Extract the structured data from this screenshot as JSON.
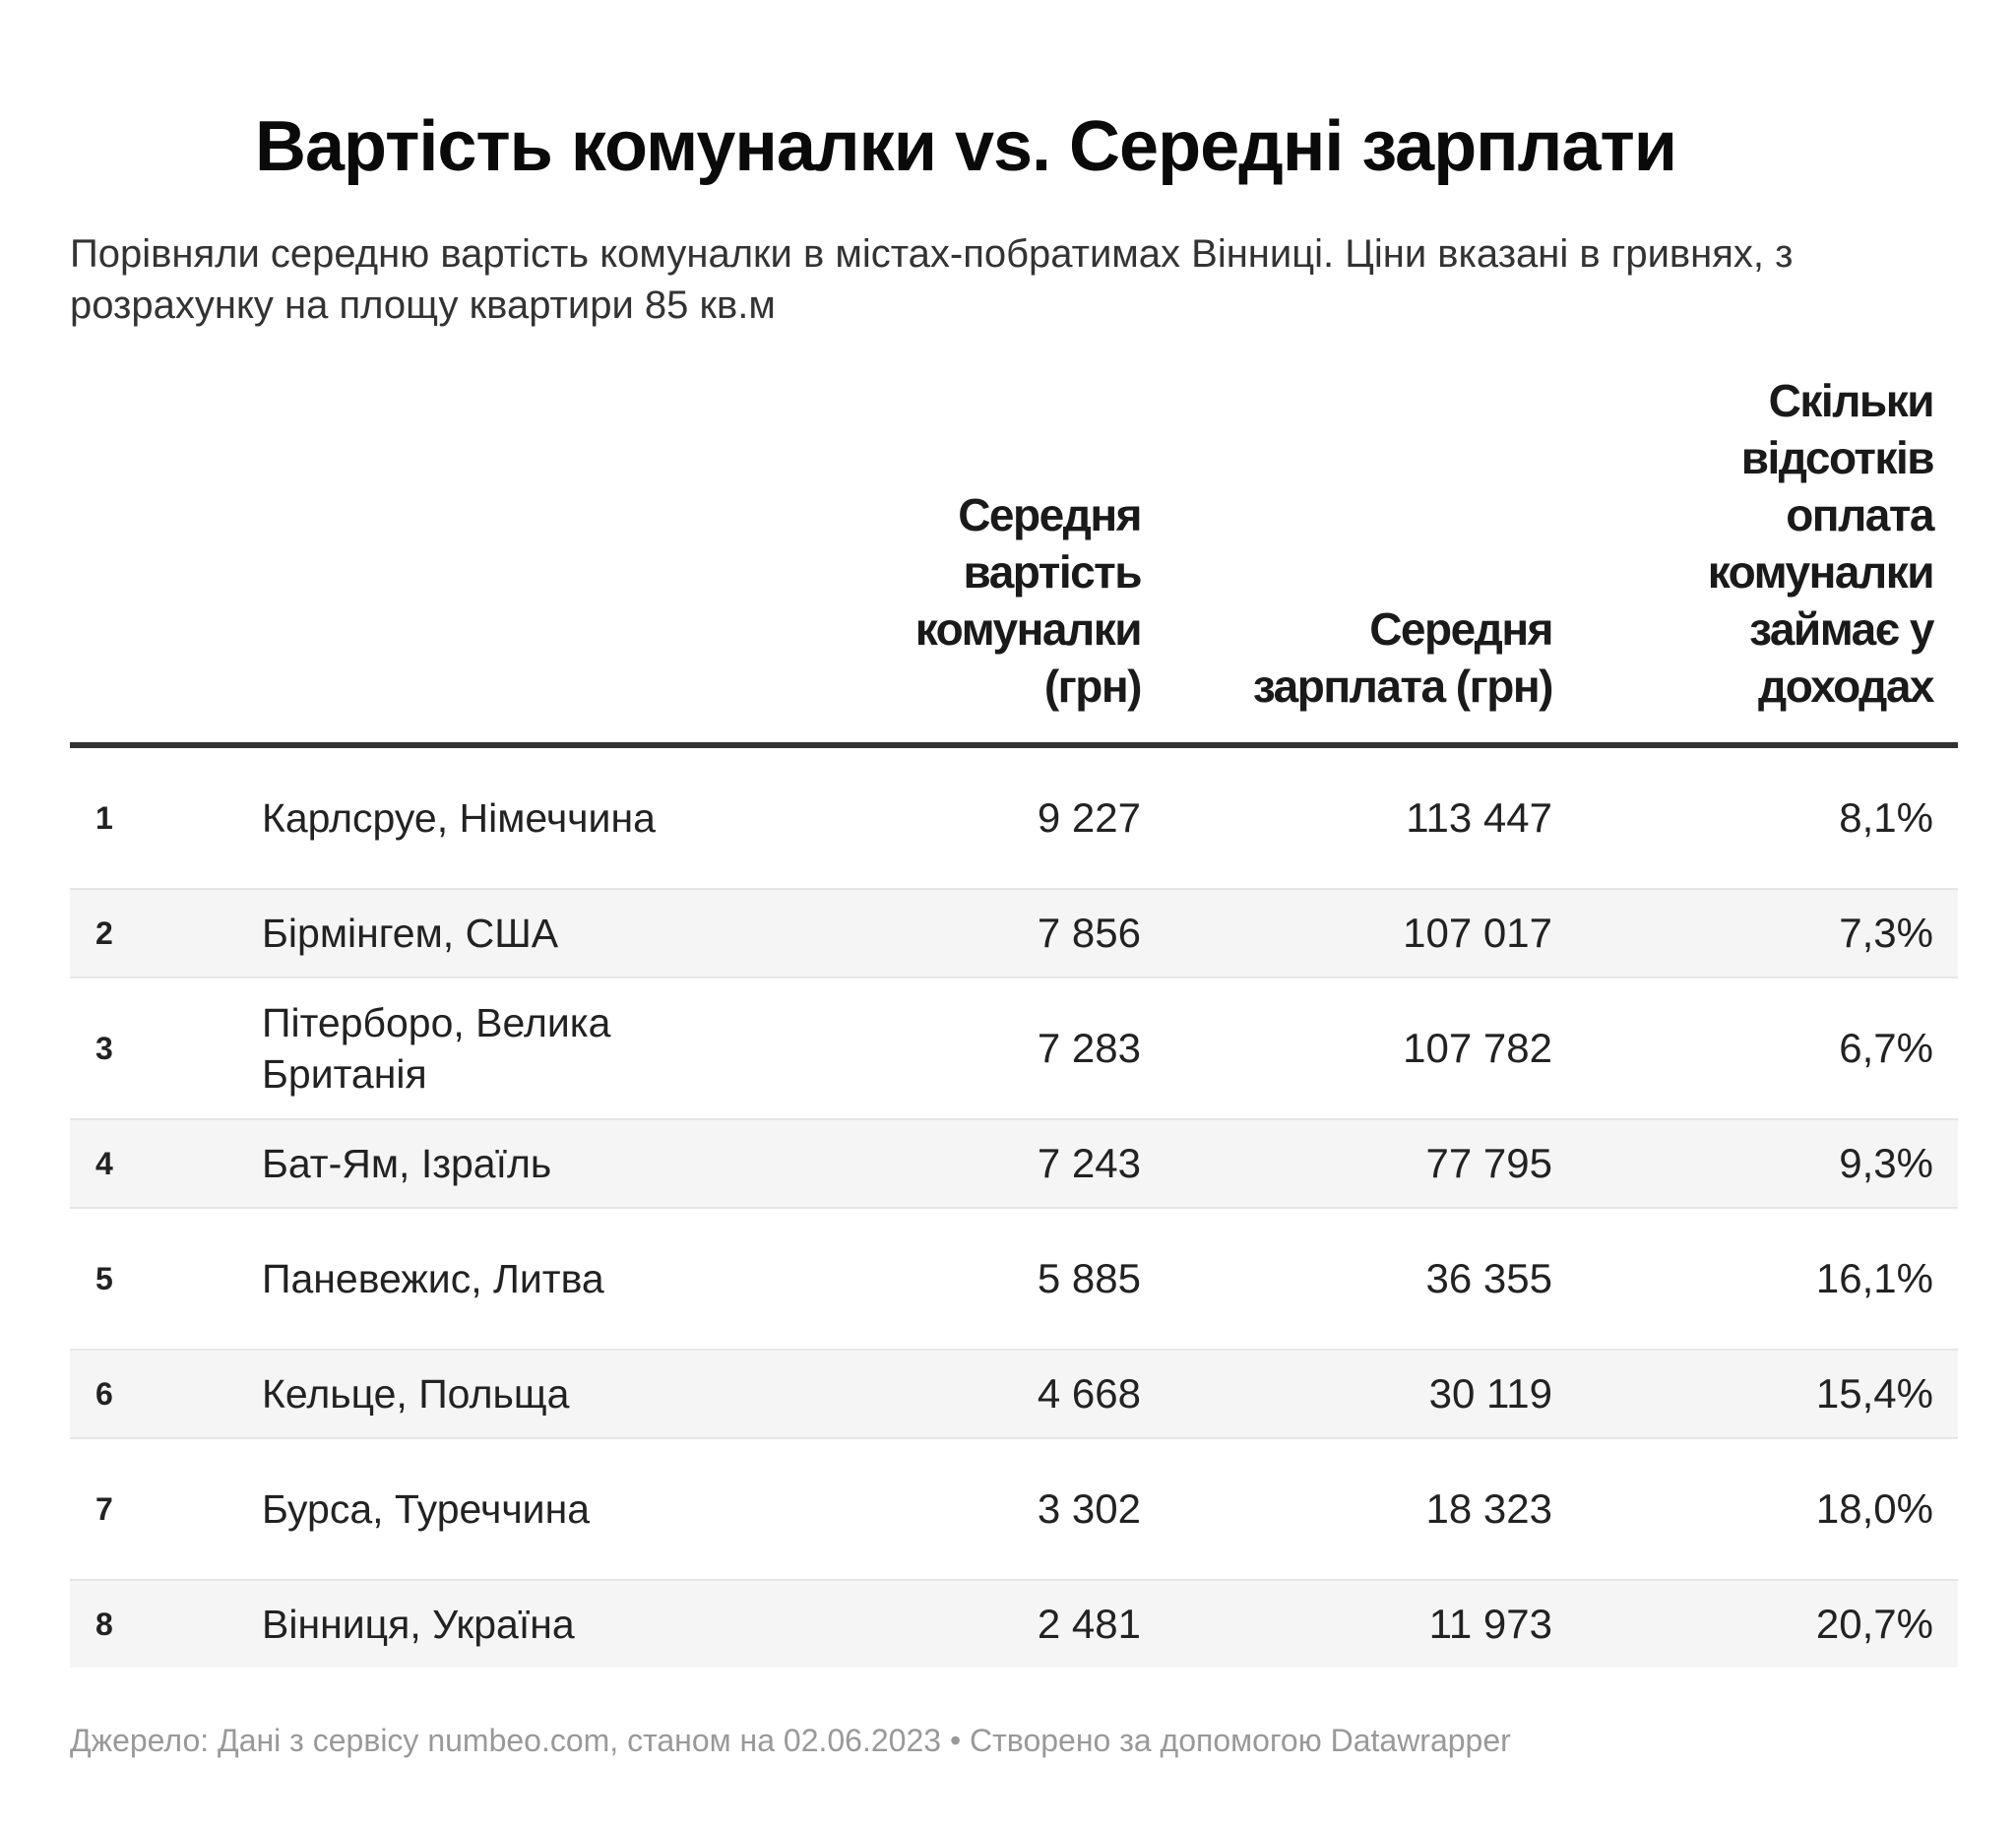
{
  "chart_data": {
    "type": "table",
    "title": "Вартість комуналки vs. Середні зарплати",
    "subtitle": "Порівняли середню вартість комуналки в містах-побратимах Вінниці. Ціни вказані в гривнях, з розрахунку на площу квартири 85 кв.м",
    "columns": [
      "",
      "",
      "Середня вартість комуналки (грн)",
      "Середня зарплата (грн)",
      "Скільки відсотків оплата комуналки займає у доходах"
    ],
    "rows": [
      {
        "rank": "1",
        "city": "Карлсруе, Німеччина",
        "utilities": "9 227",
        "salary": "113 447",
        "share": "8,1%"
      },
      {
        "rank": "2",
        "city": "Бірмінгем, США",
        "utilities": "7 856",
        "salary": "107 017",
        "share": "7,3%"
      },
      {
        "rank": "3",
        "city": "Пітерборо, Велика Британія",
        "utilities": "7 283",
        "salary": "107 782",
        "share": "6,7%"
      },
      {
        "rank": "4",
        "city": "Бат-Ям, Ізраїль",
        "utilities": "7 243",
        "salary": "77 795",
        "share": "9,3%"
      },
      {
        "rank": "5",
        "city": "Паневежис, Литва",
        "utilities": "5 885",
        "salary": "36 355",
        "share": "16,1%"
      },
      {
        "rank": "6",
        "city": "Кельце, Польща",
        "utilities": "4 668",
        "salary": "30 119",
        "share": "15,4%"
      },
      {
        "rank": "7",
        "city": "Бурса, Туреччина",
        "utilities": "3 302",
        "salary": "18 323",
        "share": "18,0%"
      },
      {
        "rank": "8",
        "city": "Вінниця, Україна",
        "utilities": "2 481",
        "salary": "11 973",
        "share": "20,7%"
      }
    ],
    "footer": "Джерело: Дані з сервісу numbeo.com, станом на 02.06.2023 • Створено за допомогою Datawrapper"
  }
}
